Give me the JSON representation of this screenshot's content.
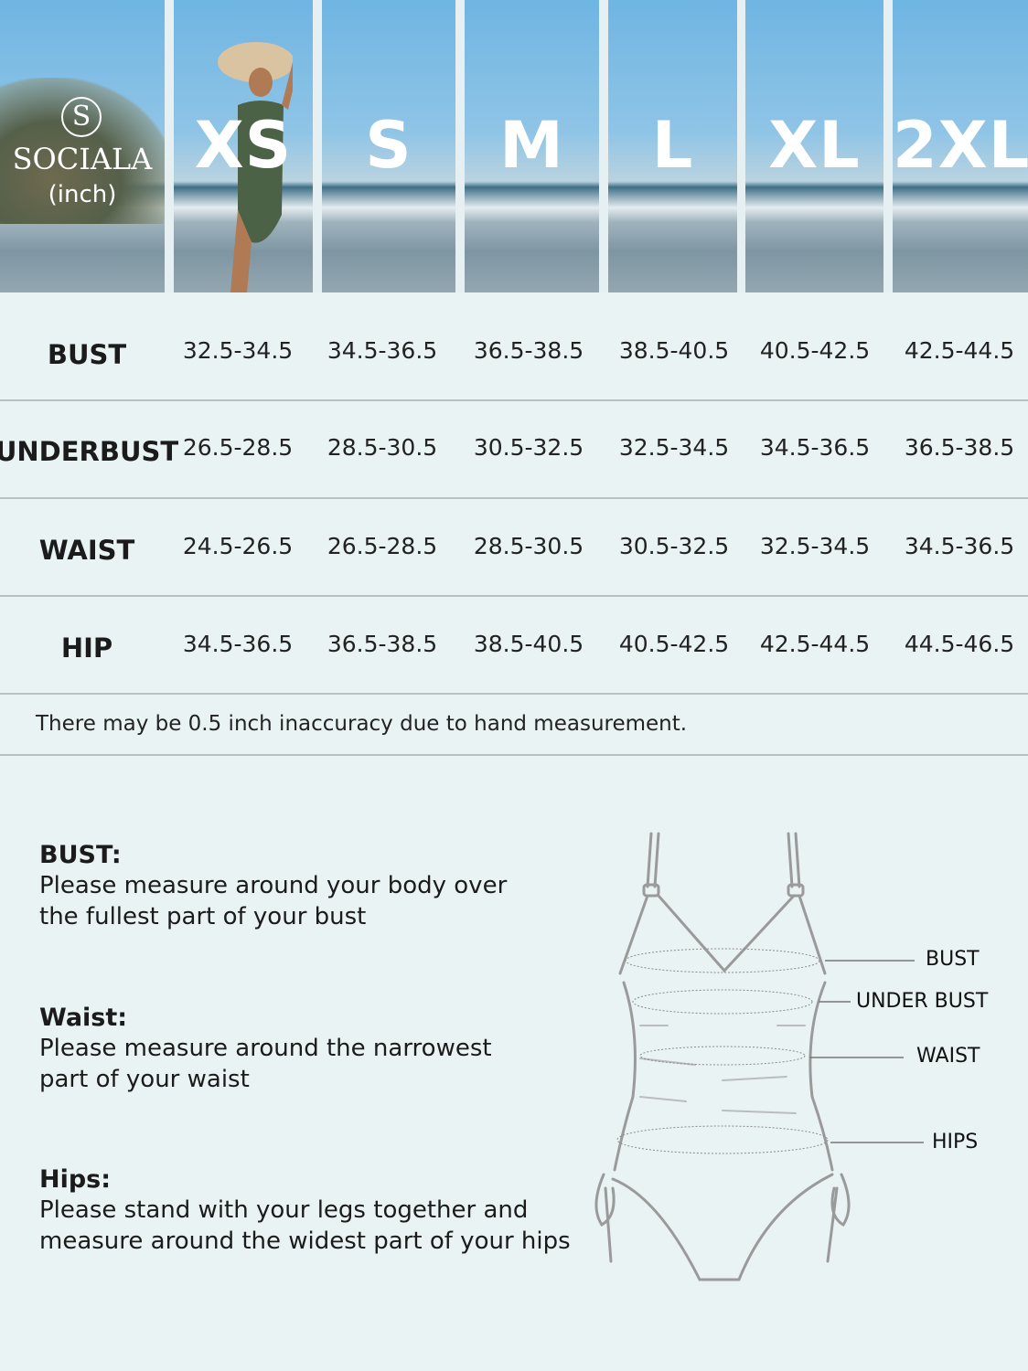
{
  "brand": {
    "name": "SOCIALA",
    "logo_letter": "S",
    "unit": "(inch)"
  },
  "sizes": [
    "XS",
    "S",
    "M",
    "L",
    "XL",
    "2XL"
  ],
  "table": {
    "rows": [
      {
        "label": "BUST",
        "values": [
          "32.5-34.5",
          "34.5-36.5",
          "36.5-38.5",
          "38.5-40.5",
          "40.5-42.5",
          "42.5-44.5"
        ]
      },
      {
        "label": "UNDERBUST",
        "values": [
          "26.5-28.5",
          "28.5-30.5",
          "30.5-32.5",
          "32.5-34.5",
          "34.5-36.5",
          "36.5-38.5"
        ]
      },
      {
        "label": "WAIST",
        "values": [
          "24.5-26.5",
          "26.5-28.5",
          "28.5-30.5",
          "30.5-32.5",
          "32.5-34.5",
          "34.5-36.5"
        ]
      },
      {
        "label": "HIP",
        "values": [
          "34.5-36.5",
          "36.5-38.5",
          "38.5-40.5",
          "40.5-42.5",
          "42.5-44.5",
          "44.5-46.5"
        ]
      }
    ],
    "note": "There may be 0.5 inch inaccuracy due to hand measurement."
  },
  "instructions": [
    {
      "heading": "BUST:",
      "lines": [
        "Please measure around your body over",
        "the fullest part of your bust"
      ]
    },
    {
      "heading": "Waist:",
      "lines": [
        "Please measure around the narrowest",
        "part of your waist"
      ]
    },
    {
      "heading": "Hips:",
      "lines": [
        "Please stand with your legs together and",
        "measure around the widest part of your hips"
      ]
    }
  ],
  "diagram_labels": {
    "bust": "BUST",
    "underbust": "UNDER BUST",
    "waist": "WAIST",
    "hips": "HIPS"
  },
  "colors": {
    "background": "#eaf3f3",
    "divider": "#b8c0c2",
    "text": "#1b1b1b"
  }
}
